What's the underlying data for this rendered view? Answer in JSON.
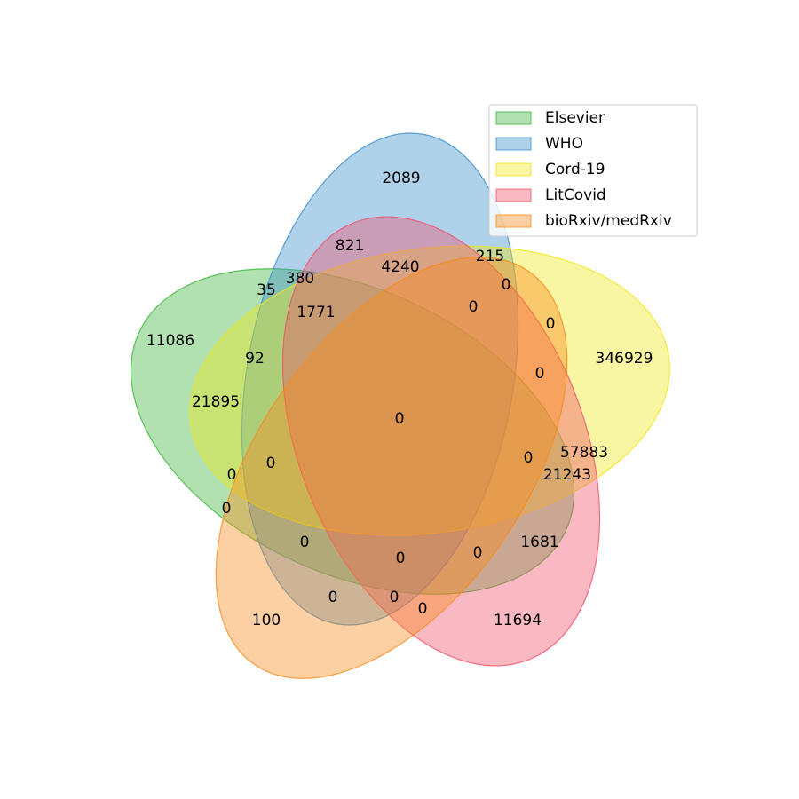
{
  "chart_data": {
    "type": "venn",
    "series": [
      {
        "name": "Elsevier",
        "color": "#3cb43a"
      },
      {
        "name": "WHO",
        "color": "#3a8ccb"
      },
      {
        "name": "Cord-19",
        "color": "#eee61a"
      },
      {
        "name": "LitCovid",
        "color": "#f0506a"
      },
      {
        "name": "bioRxiv/medRxiv",
        "color": "#f98a1a"
      }
    ],
    "values": [
      2089,
      821,
      4240,
      215,
      380,
      35,
      0,
      1771,
      0,
      0,
      11086,
      92,
      346929,
      0,
      21895,
      0,
      57883,
      0,
      0,
      0,
      21243,
      0,
      0,
      1681,
      0,
      0,
      0,
      0,
      0,
      100,
      11694
    ],
    "legend": "upper right"
  }
}
